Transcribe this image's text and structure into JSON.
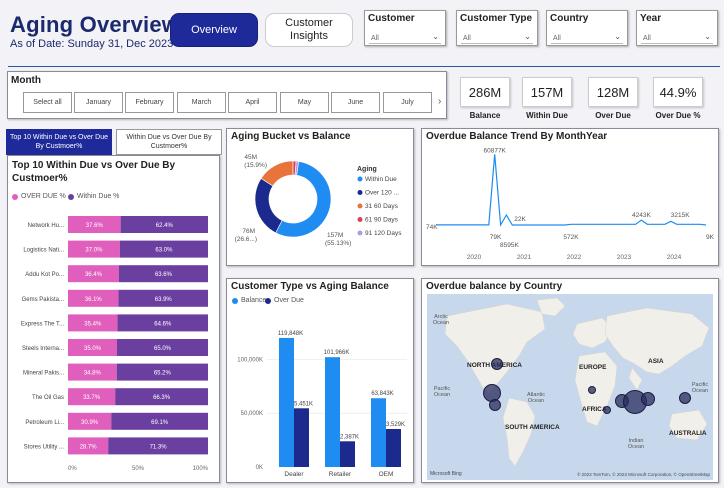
{
  "header": {
    "title": "Aging Overview",
    "as_of": "As of Date: Sunday 31, Dec 2023",
    "overview_btn": "Overview",
    "insights_btn_line1": "Customer",
    "insights_btn_line2": "Insights"
  },
  "slicers": [
    {
      "label": "Customer",
      "value": "All"
    },
    {
      "label": "Customer Type",
      "value": "All"
    },
    {
      "label": "Country",
      "value": "All"
    },
    {
      "label": "Year",
      "value": "All"
    }
  ],
  "month": {
    "label": "Month",
    "options": [
      "Select all",
      "January",
      "February",
      "March",
      "April",
      "May",
      "June",
      "July"
    ]
  },
  "kpis": [
    {
      "value": "286M",
      "label": "Balance"
    },
    {
      "value": "157M",
      "label": "Within Due"
    },
    {
      "value": "128M",
      "label": "Over Due"
    },
    {
      "value": "44.9%",
      "label": "Over Due %"
    }
  ],
  "toggle": {
    "a_line1": "Top 10 Within Due vs Over Due",
    "a_line2": "By Custmoer%",
    "b_line1": "Within Due vs Over Due By",
    "b_line2": "Custmoer%"
  },
  "colors": {
    "overdue_pink": "#e05fbd",
    "withindue_purple": "#6a3fa0",
    "blue": "#1e8cf0",
    "navy": "#1c2a8e",
    "orange": "#e8743b",
    "red": "#d9434f",
    "lavender": "#b49be0"
  },
  "top10": {
    "title": "Top 10 Within Due vs Over Due By Custmoer%",
    "legend_over": "OVER DUE %",
    "legend_within": "Within Due %",
    "axis_ticks": [
      "0%",
      "50%",
      "100%"
    ],
    "rows": [
      {
        "name": "Network Hu...",
        "over": 37.6,
        "within": 62.4,
        "over_label": "37.6%",
        "within_label": "62.4%"
      },
      {
        "name": "Logistics Nati...",
        "over": 37.0,
        "within": 63.0,
        "over_label": "37.0%",
        "within_label": "63.0%"
      },
      {
        "name": "Addu Kot Po...",
        "over": 36.4,
        "within": 63.6,
        "over_label": "36.4%",
        "within_label": "63.6%"
      },
      {
        "name": "Gems Pakista...",
        "over": 36.1,
        "within": 63.9,
        "over_label": "36.1%",
        "within_label": "63.9%"
      },
      {
        "name": "Express The T...",
        "over": 35.4,
        "within": 64.6,
        "over_label": "35.4%",
        "within_label": "64.6%"
      },
      {
        "name": "Steels Interna...",
        "over": 35.0,
        "within": 65.0,
        "over_label": "35.0%",
        "within_label": "65.0%"
      },
      {
        "name": "Mineral Pakis...",
        "over": 34.8,
        "within": 65.2,
        "over_label": "34.8%",
        "within_label": "65.2%"
      },
      {
        "name": "The Oil Gas",
        "over": 33.7,
        "within": 66.3,
        "over_label": "33.7%",
        "within_label": "66.3%"
      },
      {
        "name": "Petroleum Li...",
        "over": 30.9,
        "within": 69.1,
        "over_label": "30.9%",
        "within_label": "69.1%"
      },
      {
        "name": "Stores Utility ...",
        "over": 28.7,
        "within": 71.3,
        "over_label": "28.7%",
        "within_label": "71.3%"
      }
    ]
  },
  "aging": {
    "title": "Aging Bucket vs Balance",
    "legend_title": "Aging",
    "slices": [
      {
        "name": "Within Due",
        "value": 55.13,
        "color": "#1e8cf0"
      },
      {
        "name": "Over 120 ...",
        "value": 26.6,
        "color": "#1c2a8e"
      },
      {
        "name": "31  60 Days",
        "value": 15.9,
        "color": "#e8743b"
      },
      {
        "name": "61  90 Days",
        "value": 1.3,
        "color": "#d9434f"
      },
      {
        "name": "91  120 Days",
        "value": 1.07,
        "color": "#b49be0"
      }
    ],
    "label_45m": "45M",
    "label_45p": "(15.9%)",
    "label_76m": "76M",
    "label_76p": "(26.6...)",
    "label_157m": "157M",
    "label_157p": "(55.13%)"
  },
  "trend": {
    "title": "Overdue Balance Trend By MonthYear",
    "x_ticks": [
      "2020",
      "2021",
      "2022",
      "2023",
      "2024"
    ],
    "labels": [
      "74K",
      "60877K",
      "79K",
      "8595K",
      "22K",
      "572K",
      "4243K",
      "3215K",
      "9K"
    ]
  },
  "custtype": {
    "title": "Customer Type vs Aging Balance",
    "legend_balance": "Balance",
    "legend_overdue": "Over Due",
    "y_ticks": [
      "0K",
      "50,000K",
      "100,000K"
    ],
    "categories": [
      "Dealer",
      "Retailer",
      "OEM"
    ],
    "balance_labels": [
      "119,848K",
      "101,966K",
      "63,843K"
    ],
    "overdue_labels": [
      "5,451K",
      "2,387K",
      "3,529K"
    ]
  },
  "map": {
    "title": "Overdue balance by Country",
    "continents": [
      "NORTH AMERICA",
      "EUROPE",
      "ASIA",
      "AFRICA",
      "SOUTH AMERICA",
      "AUSTRALIA"
    ],
    "oceans": [
      "Arctic Ocean",
      "Pacific Ocean",
      "Atlantic Ocean",
      "Pacific Ocean",
      "Indian Ocean"
    ],
    "attribution": "© 2023 TomTom, © 2023 Microsoft Corporation, © OpenStreetMap",
    "brand": "Microsoft Bing"
  },
  "chart_data": [
    {
      "type": "bar",
      "title": "Top 10 Within Due vs Over Due By Custmoer%",
      "categories": [
        "Network Hu...",
        "Logistics Nati...",
        "Addu Kot Po...",
        "Gems Pakista...",
        "Express The T...",
        "Steels Interna...",
        "Mineral Pakis...",
        "The Oil Gas",
        "Petroleum Li...",
        "Stores Utility ..."
      ],
      "series": [
        {
          "name": "OVER DUE %",
          "values": [
            37.6,
            37.0,
            36.4,
            36.1,
            35.4,
            35.0,
            34.8,
            33.7,
            30.9,
            28.7
          ]
        },
        {
          "name": "Within Due %",
          "values": [
            62.4,
            63.0,
            63.6,
            63.9,
            64.6,
            65.0,
            65.2,
            66.3,
            69.1,
            71.3
          ]
        }
      ],
      "xlim": [
        0,
        100
      ]
    },
    {
      "type": "pie",
      "title": "Aging Bucket vs Balance",
      "categories": [
        "Within Due",
        "Over 120 ...",
        "31  60 Days",
        "61  90 Days",
        "91  120 Days"
      ],
      "values": [
        55.13,
        26.6,
        15.9,
        1.3,
        1.07
      ]
    },
    {
      "type": "line",
      "title": "Overdue Balance Trend By MonthYear",
      "x": [
        "2020",
        "2021",
        "2022",
        "2023",
        "2024"
      ],
      "points": [
        74,
        74,
        74,
        74,
        74,
        74,
        74,
        74,
        74,
        74,
        60877,
        79,
        8595,
        22,
        22,
        22,
        22,
        22,
        22,
        22,
        22,
        22,
        22,
        572,
        572,
        572,
        572,
        572,
        572,
        572,
        572,
        572,
        572,
        572,
        572,
        4243,
        572,
        572,
        572,
        572,
        3215,
        572,
        572,
        572,
        572,
        572,
        9
      ]
    },
    {
      "type": "bar",
      "title": "Customer Type vs Aging Balance",
      "categories": [
        "Dealer",
        "Retailer",
        "OEM"
      ],
      "series": [
        {
          "name": "Balance",
          "values": [
            119848,
            101966,
            63843
          ]
        },
        {
          "name": "Over Due",
          "values": [
            5451,
            2387,
            3529
          ]
        }
      ],
      "ylim": [
        0,
        130000
      ]
    }
  ]
}
